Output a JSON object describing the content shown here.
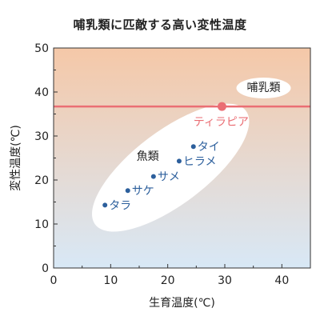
{
  "chart_data": {
    "type": "scatter",
    "title": "哺乳類に匹敵する高い変性温度",
    "xlabel": "生育温度(℃)",
    "ylabel": "変性温度(℃)",
    "xlim": [
      0,
      45
    ],
    "ylim": [
      0,
      50
    ],
    "xticks": [
      0,
      10,
      20,
      30,
      40
    ],
    "yticks": [
      0,
      10,
      20,
      30,
      40,
      50
    ],
    "grid": false,
    "background_gradient": {
      "top": "#f5c8a8",
      "bottom": "#d8e8f6"
    },
    "points": [
      {
        "name": "タラ",
        "x": 9,
        "y": 14.3,
        "color": "#2c5f9c"
      },
      {
        "name": "サケ",
        "x": 13,
        "y": 17.6,
        "color": "#2c5f9c"
      },
      {
        "name": "サメ",
        "x": 17.5,
        "y": 20.8,
        "color": "#2c5f9c"
      },
      {
        "name": "ヒラメ",
        "x": 22,
        "y": 24.3,
        "color": "#2c5f9c"
      },
      {
        "name": "タイ",
        "x": 24.5,
        "y": 27.6,
        "color": "#2c5f9c"
      },
      {
        "name": "ティラピア",
        "x": 29.5,
        "y": 36.7,
        "color": "#ea6e74",
        "highlight": true
      }
    ],
    "reference_line": {
      "y": 36.7,
      "label": "哺乳類",
      "color": "#ea6e74"
    },
    "group_label": "魚類",
    "group_color": "#ffffff"
  }
}
